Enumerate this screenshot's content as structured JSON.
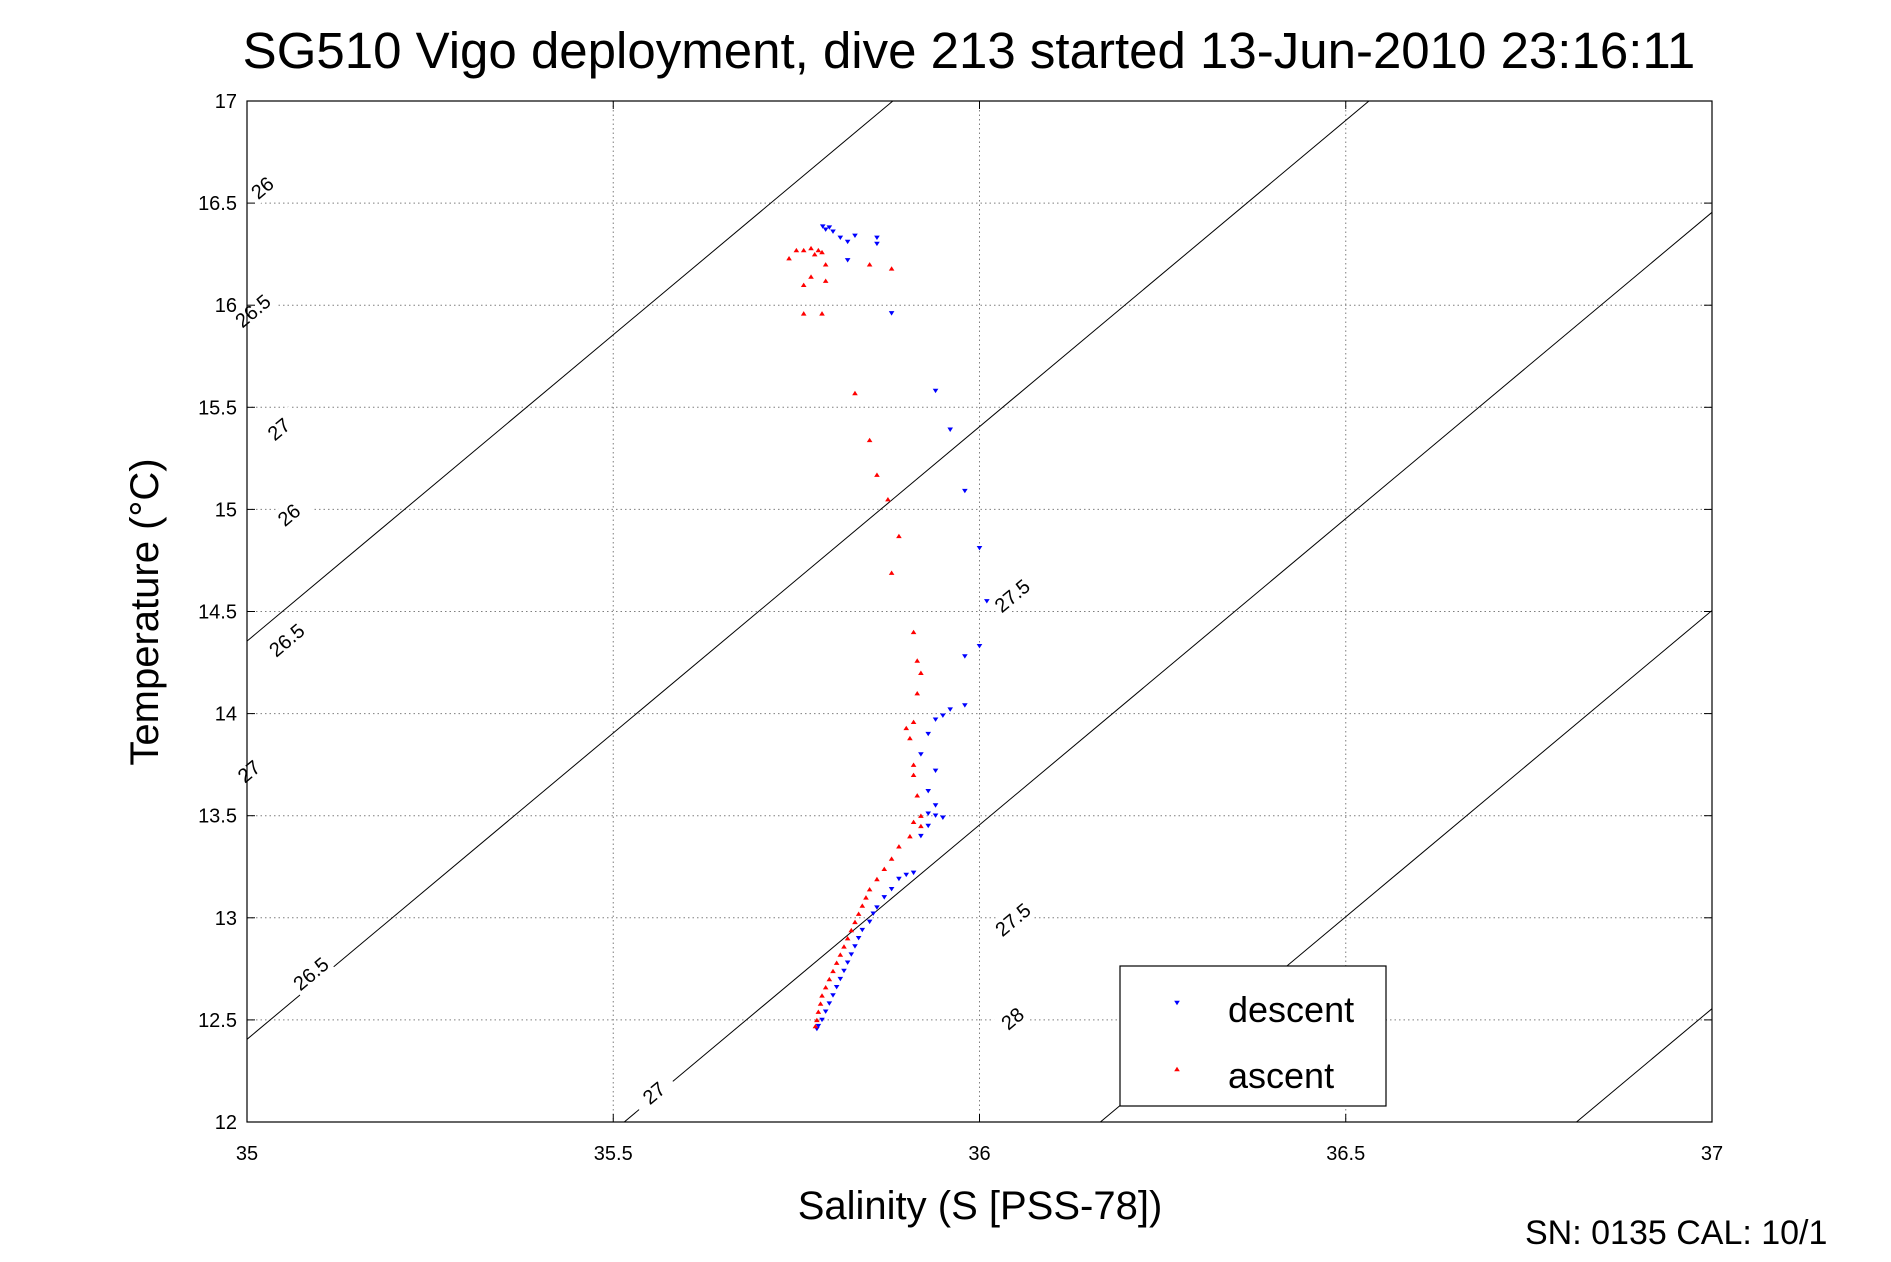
{
  "chart_data": {
    "type": "scatter",
    "title": "SG510 Vigo deployment, dive 213 started 13-Jun-2010 23:16:11",
    "xlabel": "Salinity (S [PSS-78])",
    "ylabel": "Temperature (°C)",
    "xlim": [
      35,
      37
    ],
    "ylim": [
      12,
      17
    ],
    "xticks": [
      "35",
      "35.5",
      "36",
      "36.5",
      "37"
    ],
    "yticks": [
      "12",
      "12.5",
      "13",
      "13.5",
      "14",
      "14.5",
      "15",
      "15.5",
      "16",
      "16.5",
      "17"
    ],
    "grid": true,
    "legend_position": "bottom-right",
    "footer": "SN: 0135  CAL: 10/1",
    "colors": {
      "descent": "#0000ff",
      "ascent": "#ff0000",
      "contour": "#000000"
    },
    "density_contours": [
      {
        "label": "26",
        "s_at_12": 34.215,
        "labels_at": [
          [
            35.0572,
            14.973
          ],
          [
            35.0208,
            16.575
          ]
        ]
      },
      {
        "label": "26.5",
        "s_at_12": 34.865,
        "labels_at": [
          [
            35.0872,
            12.726
          ],
          [
            35.0542,
            14.36
          ],
          [
            35.008,
            15.972
          ]
        ]
      },
      {
        "label": "27",
        "s_at_12": 35.515,
        "labels_at": [
          [
            35.5555,
            12.142
          ],
          [
            35.0026,
            13.717
          ],
          [
            35.0434,
            15.393
          ]
        ]
      },
      {
        "label": "27.5",
        "s_at_12": 36.165,
        "labels_at": [
          [
            36.0455,
            12.991
          ],
          [
            36.0446,
            14.577
          ]
        ]
      },
      {
        "label": "28",
        "s_at_12": 36.815,
        "labels_at": [
          [
            36.045,
            12.507
          ]
        ]
      }
    ],
    "series": [
      {
        "name": "descent",
        "marker": "triangle-down",
        "points": [
          [
            35.786,
            16.385
          ],
          [
            35.79,
            16.37
          ],
          [
            35.795,
            16.38
          ],
          [
            35.8,
            16.36
          ],
          [
            35.81,
            16.33
          ],
          [
            35.82,
            16.31
          ],
          [
            35.83,
            16.34
          ],
          [
            35.82,
            16.22
          ],
          [
            35.86,
            16.33
          ],
          [
            35.86,
            16.3
          ],
          [
            35.88,
            15.96
          ],
          [
            35.94,
            15.58
          ],
          [
            35.96,
            15.39
          ],
          [
            35.98,
            15.09
          ],
          [
            36.0,
            14.81
          ],
          [
            36.01,
            14.55
          ],
          [
            36.0,
            14.33
          ],
          [
            35.98,
            14.28
          ],
          [
            35.98,
            14.04
          ],
          [
            35.96,
            14.02
          ],
          [
            35.95,
            13.99
          ],
          [
            35.94,
            13.97
          ],
          [
            35.93,
            13.9
          ],
          [
            35.92,
            13.8
          ],
          [
            35.94,
            13.72
          ],
          [
            35.93,
            13.62
          ],
          [
            35.94,
            13.55
          ],
          [
            35.93,
            13.51
          ],
          [
            35.94,
            13.5
          ],
          [
            35.95,
            13.49
          ],
          [
            35.93,
            13.45
          ],
          [
            35.92,
            13.4
          ],
          [
            35.91,
            13.22
          ],
          [
            35.9,
            13.21
          ],
          [
            35.89,
            13.19
          ],
          [
            35.88,
            13.14
          ],
          [
            35.87,
            13.1
          ],
          [
            35.86,
            13.05
          ],
          [
            35.855,
            13.02
          ],
          [
            35.85,
            12.98
          ],
          [
            35.84,
            12.94
          ],
          [
            35.835,
            12.9
          ],
          [
            35.83,
            12.86
          ],
          [
            35.825,
            12.82
          ],
          [
            35.82,
            12.78
          ],
          [
            35.815,
            12.74
          ],
          [
            35.81,
            12.7
          ],
          [
            35.805,
            12.66
          ],
          [
            35.8,
            12.62
          ],
          [
            35.795,
            12.58
          ],
          [
            35.79,
            12.54
          ],
          [
            35.785,
            12.5
          ],
          [
            35.78,
            12.47
          ],
          [
            35.778,
            12.455
          ]
        ]
      },
      {
        "name": "ascent",
        "marker": "triangle-up",
        "points": [
          [
            35.74,
            16.23
          ],
          [
            35.75,
            16.27
          ],
          [
            35.76,
            16.27
          ],
          [
            35.77,
            16.28
          ],
          [
            35.78,
            16.27
          ],
          [
            35.785,
            16.26
          ],
          [
            35.775,
            16.25
          ],
          [
            35.79,
            16.2
          ],
          [
            35.77,
            16.14
          ],
          [
            35.79,
            16.12
          ],
          [
            35.76,
            16.1
          ],
          [
            35.85,
            16.2
          ],
          [
            35.88,
            16.18
          ],
          [
            35.76,
            15.96
          ],
          [
            35.785,
            15.96
          ],
          [
            35.83,
            15.57
          ],
          [
            35.85,
            15.34
          ],
          [
            35.86,
            15.17
          ],
          [
            35.875,
            15.05
          ],
          [
            35.89,
            14.87
          ],
          [
            35.88,
            14.69
          ],
          [
            35.91,
            14.4
          ],
          [
            35.915,
            14.26
          ],
          [
            35.92,
            14.2
          ],
          [
            35.915,
            14.1
          ],
          [
            35.91,
            13.96
          ],
          [
            35.9,
            13.93
          ],
          [
            35.905,
            13.88
          ],
          [
            35.91,
            13.75
          ],
          [
            35.91,
            13.7
          ],
          [
            35.915,
            13.6
          ],
          [
            35.92,
            13.5
          ],
          [
            35.91,
            13.47
          ],
          [
            35.92,
            13.45
          ],
          [
            35.905,
            13.4
          ],
          [
            35.89,
            13.35
          ],
          [
            35.88,
            13.29
          ],
          [
            35.87,
            13.24
          ],
          [
            35.86,
            13.19
          ],
          [
            35.85,
            13.14
          ],
          [
            35.845,
            13.1
          ],
          [
            35.84,
            13.06
          ],
          [
            35.835,
            13.02
          ],
          [
            35.83,
            12.98
          ],
          [
            35.825,
            12.94
          ],
          [
            35.82,
            12.9
          ],
          [
            35.815,
            12.86
          ],
          [
            35.81,
            12.82
          ],
          [
            35.805,
            12.78
          ],
          [
            35.8,
            12.74
          ],
          [
            35.795,
            12.7
          ],
          [
            35.79,
            12.66
          ],
          [
            35.785,
            12.62
          ],
          [
            35.783,
            12.58
          ],
          [
            35.78,
            12.54
          ],
          [
            35.778,
            12.5
          ],
          [
            35.776,
            12.47
          ]
        ]
      }
    ]
  }
}
